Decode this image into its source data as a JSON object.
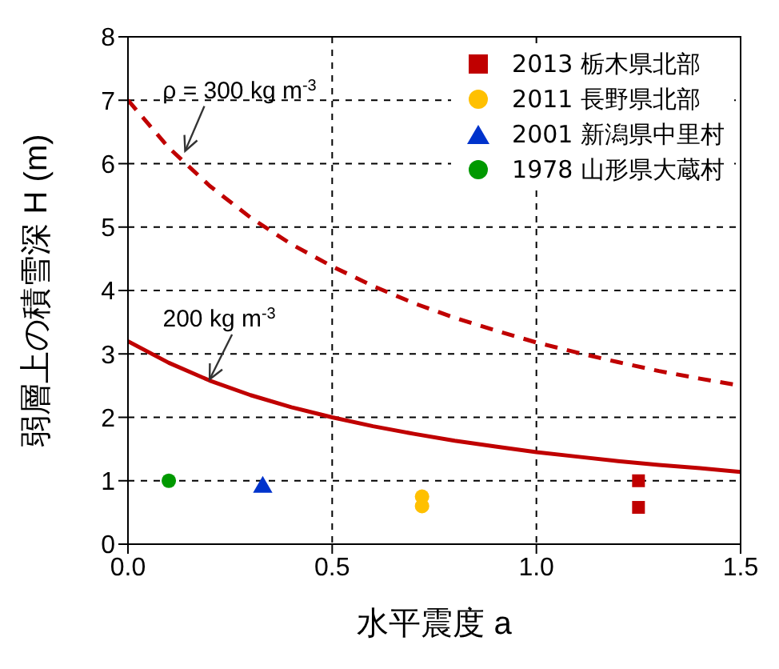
{
  "chart_data": {
    "type": "scatter",
    "xlabel": "水平震度 a",
    "ylabel": "弱層上の積雪深 H (m)",
    "xlim": [
      0,
      1.5
    ],
    "xticks": [
      {
        "value": 0,
        "label": "0.0"
      },
      {
        "value": 0.5,
        "label": "0.5"
      },
      {
        "value": 1,
        "label": "1.0"
      },
      {
        "value": 1.5,
        "label": "1.5"
      }
    ],
    "ylim": [
      0,
      8
    ],
    "yticks": [
      0,
      1,
      2,
      3,
      4,
      5,
      6,
      7,
      8
    ],
    "grid": true,
    "legend": "top right",
    "series": [
      {
        "name": "2013 栃木県北部",
        "color": "#c00000",
        "marker": "square",
        "x": [
          1.25,
          1.25
        ],
        "values": [
          1.0,
          0.58
        ]
      },
      {
        "name": "2011 長野県北部",
        "color": "#ffc000",
        "marker": "circle",
        "x": [
          0.72,
          0.72
        ],
        "values": [
          0.75,
          0.6
        ]
      },
      {
        "name": "2001 新潟県中里村",
        "color": "#0033cc",
        "marker": "triangle",
        "x": [
          0.33
        ],
        "values": [
          0.9
        ]
      },
      {
        "name": "1978 山形県大蔵村",
        "color": "#009900",
        "marker": "circle",
        "x": [
          0.1
        ],
        "values": [
          1.0
        ]
      },
      {
        "type": "line",
        "color": "#c00000",
        "line_style": "dashed",
        "marker": "none",
        "x": [
          0,
          0.1,
          0.2,
          0.3,
          0.4,
          0.5,
          0.6,
          0.7,
          0.8,
          0.9,
          1.0,
          1.1,
          1.2,
          1.3,
          1.4,
          1.5
        ],
        "values": [
          7,
          6.25,
          5.65,
          5.15,
          4.73,
          4.38,
          4.07,
          3.8,
          3.57,
          3.37,
          3.18,
          3.02,
          2.87,
          2.73,
          2.61,
          2.5
        ]
      },
      {
        "type": "line",
        "color": "#c00000",
        "line_style": "solid",
        "marker": "none",
        "x": [
          0,
          0.1,
          0.2,
          0.3,
          0.4,
          0.5,
          0.6,
          0.7,
          0.8,
          0.9,
          1.0,
          1.1,
          1.2,
          1.3,
          1.4,
          1.5
        ],
        "values": [
          3.2,
          2.86,
          2.58,
          2.35,
          2.16,
          2.0,
          1.86,
          1.74,
          1.63,
          1.54,
          1.45,
          1.38,
          1.31,
          1.25,
          1.2,
          1.14
        ]
      }
    ],
    "annotations": [
      {
        "text": "ρ = 300 kg m$^{-3}$",
        "x": 0.14,
        "y": 6.2
      },
      {
        "text": "200 kg m$^{-3}$",
        "x": 0.2,
        "y": 2.6
      }
    ]
  }
}
